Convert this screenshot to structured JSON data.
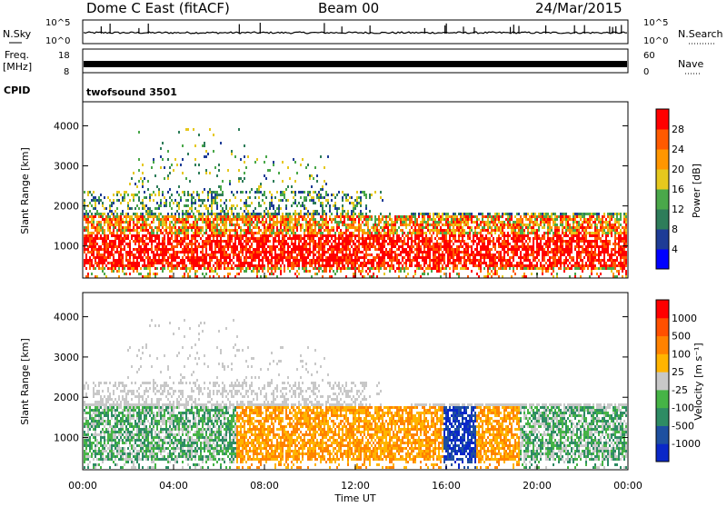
{
  "header": {
    "station": "Dome C East (fitACF)",
    "beam": "Beam 00",
    "date": "24/Mar/2015"
  },
  "panels": {
    "nsky": {
      "left_label": "N.Sky",
      "right_label": "N.Search",
      "left_ticks": [
        "10^5",
        "10^0"
      ],
      "right_ticks": [
        "10^5",
        "10^0"
      ]
    },
    "freq": {
      "left_label_line1": "Freq.",
      "left_label_line2": "[MHz]",
      "left_ticks": [
        "18",
        "8"
      ],
      "right_label": "Nave",
      "right_ticks": [
        "60",
        "0"
      ]
    },
    "cpid": {
      "label": "CPID",
      "program": "twofsound 3501"
    }
  },
  "chart_data": [
    {
      "type": "heatmap",
      "name": "power",
      "ylabel": "Slant Range [km]",
      "ylim": [
        200,
        4600
      ],
      "yticks": [
        "1000",
        "2000",
        "3000",
        "4000"
      ],
      "xlim": [
        "00:00",
        "24:00"
      ],
      "colorbar": {
        "label": "Power [dB]",
        "tick_labels": [
          "4",
          "8",
          "12",
          "16",
          "20",
          "24",
          "28"
        ],
        "colors": [
          "#0000ff",
          "#1e3c96",
          "#2e7d5a",
          "#4aa84a",
          "#e6c81e",
          "#ff9600",
          "#ff5a00",
          "#ff0000"
        ]
      }
    },
    {
      "type": "heatmap",
      "name": "velocity",
      "ylabel": "Slant Range [km]",
      "ylim": [
        200,
        4600
      ],
      "yticks": [
        "1000",
        "2000",
        "3000",
        "4000"
      ],
      "xlim": [
        "00:00",
        "24:00"
      ],
      "xlabel": "Time UT",
      "xticks": [
        "00:00",
        "04:00",
        "08:00",
        "12:00",
        "16:00",
        "20:00",
        "00:00"
      ],
      "colorbar": {
        "label": "Velocity [m s⁻¹]",
        "tick_labels": [
          "1000",
          "500",
          "100",
          "25",
          "-25",
          "-100",
          "-500",
          "-1000"
        ],
        "colors": [
          "#0a28c8",
          "#1e50a0",
          "#2e8c64",
          "#46b446",
          "#c8c8c8",
          "#ffb400",
          "#ff8200",
          "#ff5000",
          "#ff0000"
        ]
      }
    }
  ]
}
